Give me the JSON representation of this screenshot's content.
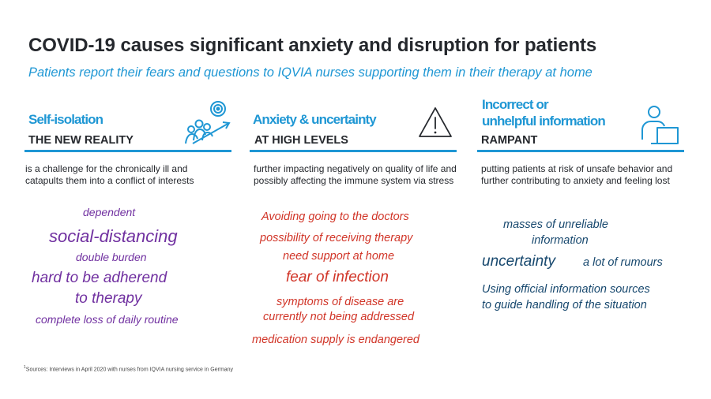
{
  "title": "COVID-19 causes significant anxiety and disruption for patients",
  "subtitle": "Patients report their fears and questions to IQVIA nurses supporting them in their therapy at home",
  "columns": [
    {
      "heading": "Self-isolation",
      "subheading": "THE NEW REALITY",
      "description": "is a challenge for the chronically ill and catapults them into a conflict of interests",
      "icon": "people-growth-target-icon",
      "words": [
        "dependent",
        "social-distancing",
        "double burden",
        "hard to be adherend",
        "to therapy",
        "complete loss of daily routine"
      ]
    },
    {
      "heading": "Anxiety & uncertainty",
      "subheading": "AT HIGH LEVELS",
      "description": "further impacting negatively on quality of life and possibly affecting the immune system via stress",
      "icon": "warning-triangle-icon",
      "words": [
        "Avoiding going to the doctors",
        "possibility of receiving therapy",
        "need support at home",
        "fear of infection",
        "symptoms of disease are",
        "currently not being addressed",
        "medication supply is endangered"
      ]
    },
    {
      "heading_line1": "Incorrect or",
      "heading_line2": "unhelpful information",
      "subheading": "RAMPANT",
      "description": "putting patients at risk of unsafe behavior and further contributing to anxiety and feeling lost",
      "icon": "person-at-computer-icon",
      "words": [
        "masses of unreliable",
        "information",
        "uncertainty",
        "a lot of rumours",
        "Using official information sources",
        "to guide handling of the situation"
      ]
    }
  ],
  "footnote": {
    "marker": "1",
    "text_a": "Sources: Interviews in April 2020",
    "text_b": "with nurses from",
    "text_c": "IQVIA nursing service in Germany"
  },
  "colors": {
    "accent": "#1f97d4",
    "purple": "#7030a0",
    "red": "#d13528",
    "navy": "#17486e"
  }
}
